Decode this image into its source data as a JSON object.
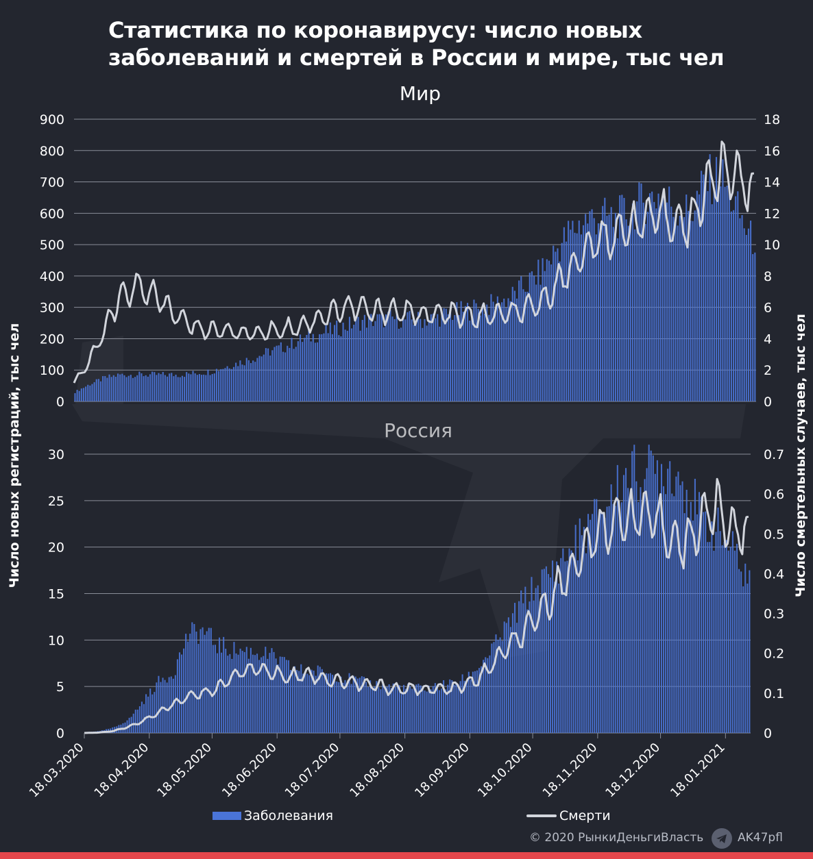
{
  "title": "Статистика по коронавирусу: число новых заболеваний и смертей в России и мире, тыс чел",
  "left_axis_label": "Число новых регистраций, тыс чел",
  "right_axis_label": "Число смертельных случаев, тыс чел",
  "legend": {
    "cases": "Заболевания",
    "deaths": "Смерти"
  },
  "footer": {
    "copyright": "© 2020  РынкиДеньгиВласть",
    "channel": "AK47pfl"
  },
  "colors": {
    "background": "#23262f",
    "bars": "#4a74d8",
    "line": "#d2d5dc",
    "accent": "#e5464b"
  },
  "chart_data": [
    {
      "type": "bar+line",
      "title": "Мир",
      "left_ylim": [
        0,
        900
      ],
      "left_ticks": [
        "0",
        "100",
        "200",
        "300",
        "400",
        "500",
        "600",
        "700",
        "800",
        "900"
      ],
      "right_ylim": [
        0,
        18
      ],
      "right_ticks": [
        "0",
        "2",
        "4",
        "6",
        "8",
        "10",
        "12",
        "14",
        "16",
        "18"
      ],
      "x_range": [
        "18.03.2020",
        "30.01.2021"
      ],
      "series": [
        {
          "name": "Заболевания",
          "kind": "bar",
          "axis": "left",
          "granularity": "weekly average",
          "x": [
            "18.03",
            "25.03",
            "01.04",
            "08.04",
            "15.04",
            "22.04",
            "29.04",
            "06.05",
            "13.05",
            "20.05",
            "27.05",
            "03.06",
            "10.06",
            "17.06",
            "24.06",
            "01.07",
            "08.07",
            "15.07",
            "22.07",
            "29.07",
            "05.08",
            "12.08",
            "19.08",
            "26.08",
            "02.09",
            "09.09",
            "16.09",
            "23.09",
            "30.09",
            "07.10",
            "14.10",
            "21.10",
            "28.10",
            "04.11",
            "11.11",
            "18.11",
            "25.11",
            "02.12",
            "09.12",
            "16.12",
            "23.12",
            "30.12",
            "06.01",
            "13.01",
            "20.01",
            "27.01"
          ],
          "values": [
            30,
            55,
            75,
            85,
            85,
            85,
            85,
            85,
            90,
            95,
            110,
            125,
            140,
            160,
            175,
            195,
            210,
            225,
            240,
            255,
            260,
            265,
            260,
            260,
            265,
            280,
            290,
            300,
            310,
            330,
            370,
            410,
            480,
            540,
            580,
            590,
            580,
            610,
            640,
            660,
            620,
            600,
            700,
            720,
            620,
            520
          ]
        },
        {
          "name": "Смерти",
          "kind": "line",
          "axis": "right",
          "granularity": "weekly average",
          "x": [
            "18.03",
            "25.03",
            "01.04",
            "08.04",
            "15.04",
            "22.04",
            "29.04",
            "06.05",
            "13.05",
            "20.05",
            "27.05",
            "03.06",
            "10.06",
            "17.06",
            "24.06",
            "01.07",
            "08.07",
            "15.07",
            "22.07",
            "29.07",
            "05.08",
            "12.08",
            "19.08",
            "26.08",
            "02.09",
            "09.09",
            "16.09",
            "23.09",
            "30.09",
            "07.10",
            "14.10",
            "21.10",
            "28.10",
            "04.11",
            "11.11",
            "18.11",
            "25.11",
            "02.12",
            "09.12",
            "16.12",
            "23.12",
            "30.12",
            "06.01",
            "13.01",
            "20.01",
            "27.01"
          ],
          "values": [
            1.2,
            2.5,
            4.5,
            6.5,
            7.3,
            7.0,
            6.2,
            5.3,
            4.8,
            4.5,
            4.6,
            4.4,
            4.3,
            4.5,
            4.6,
            4.8,
            5.2,
            5.6,
            6.0,
            6.0,
            5.7,
            5.8,
            5.7,
            5.6,
            5.5,
            5.6,
            5.4,
            5.4,
            5.5,
            5.6,
            5.8,
            6.2,
            7.3,
            8.4,
            9.5,
            10.3,
            10.6,
            11.2,
            11.6,
            11.8,
            11.5,
            11.2,
            13.5,
            14.6,
            14.8,
            13.4
          ]
        }
      ]
    },
    {
      "type": "bar+line",
      "title": "Россия",
      "left_ylim": [
        0,
        30
      ],
      "left_ticks": [
        "0",
        "5",
        "10",
        "15",
        "20",
        "25",
        "30"
      ],
      "right_ylim": [
        0,
        0.7
      ],
      "right_ticks": [
        "0",
        "0.1",
        "0.2",
        "0.3",
        "0.4",
        "0.5",
        "0.6",
        "0.7"
      ],
      "x_ticks": [
        "18.03.2020",
        "18.04.2020",
        "18.05.2020",
        "18.06.2020",
        "18.07.2020",
        "18.08.2020",
        "18.09.2020",
        "18.10.2020",
        "18.11.2020",
        "18.12.2020",
        "18.01.2021"
      ],
      "series": [
        {
          "name": "Заболевания",
          "kind": "bar",
          "axis": "left",
          "granularity": "weekly average",
          "x": [
            "18.03",
            "25.03",
            "01.04",
            "08.04",
            "15.04",
            "22.04",
            "29.04",
            "06.05",
            "13.05",
            "20.05",
            "27.05",
            "03.06",
            "10.06",
            "17.06",
            "24.06",
            "01.07",
            "08.07",
            "15.07",
            "22.07",
            "29.07",
            "05.08",
            "12.08",
            "19.08",
            "26.08",
            "02.09",
            "09.09",
            "16.09",
            "23.09",
            "30.09",
            "07.10",
            "14.10",
            "21.10",
            "28.10",
            "04.11",
            "11.11",
            "18.11",
            "25.11",
            "02.12",
            "09.12",
            "16.12",
            "23.12",
            "30.12",
            "06.01",
            "13.01",
            "20.01",
            "27.01"
          ],
          "values": [
            0.1,
            0.2,
            0.6,
            1.5,
            3.5,
            5.5,
            6.5,
            10.5,
            11.0,
            9.5,
            8.9,
            8.8,
            8.6,
            8.0,
            7.0,
            6.6,
            6.6,
            6.3,
            5.8,
            5.4,
            5.2,
            5.0,
            4.8,
            4.8,
            5.0,
            5.3,
            5.8,
            7.5,
            9.5,
            12.0,
            14.5,
            16.0,
            17.5,
            19.5,
            21.5,
            23.5,
            25.5,
            28.0,
            27.5,
            28.5,
            28.5,
            26.5,
            23.0,
            22.0,
            20.0,
            17.0
          ]
        },
        {
          "name": "Смерти",
          "kind": "line",
          "axis": "right",
          "granularity": "weekly average",
          "x": [
            "18.03",
            "25.03",
            "01.04",
            "08.04",
            "15.04",
            "22.04",
            "29.04",
            "06.05",
            "13.05",
            "20.05",
            "27.05",
            "03.06",
            "10.06",
            "17.06",
            "24.06",
            "01.07",
            "08.07",
            "15.07",
            "22.07",
            "29.07",
            "05.08",
            "12.08",
            "19.08",
            "26.08",
            "02.09",
            "09.09",
            "16.09",
            "23.09",
            "30.09",
            "07.10",
            "14.10",
            "21.10",
            "28.10",
            "04.11",
            "11.11",
            "18.11",
            "25.11",
            "02.12",
            "09.12",
            "16.12",
            "23.12",
            "30.12",
            "06.01",
            "13.01",
            "20.01",
            "27.01"
          ],
          "values": [
            0.0,
            0.001,
            0.005,
            0.015,
            0.03,
            0.05,
            0.07,
            0.09,
            0.1,
            0.11,
            0.14,
            0.16,
            0.16,
            0.15,
            0.14,
            0.15,
            0.14,
            0.13,
            0.13,
            0.12,
            0.12,
            0.11,
            0.11,
            0.11,
            0.11,
            0.11,
            0.12,
            0.14,
            0.18,
            0.22,
            0.25,
            0.3,
            0.35,
            0.4,
            0.45,
            0.5,
            0.53,
            0.54,
            0.55,
            0.53,
            0.49,
            0.47,
            0.53,
            0.57,
            0.52,
            0.5
          ]
        }
      ]
    }
  ]
}
